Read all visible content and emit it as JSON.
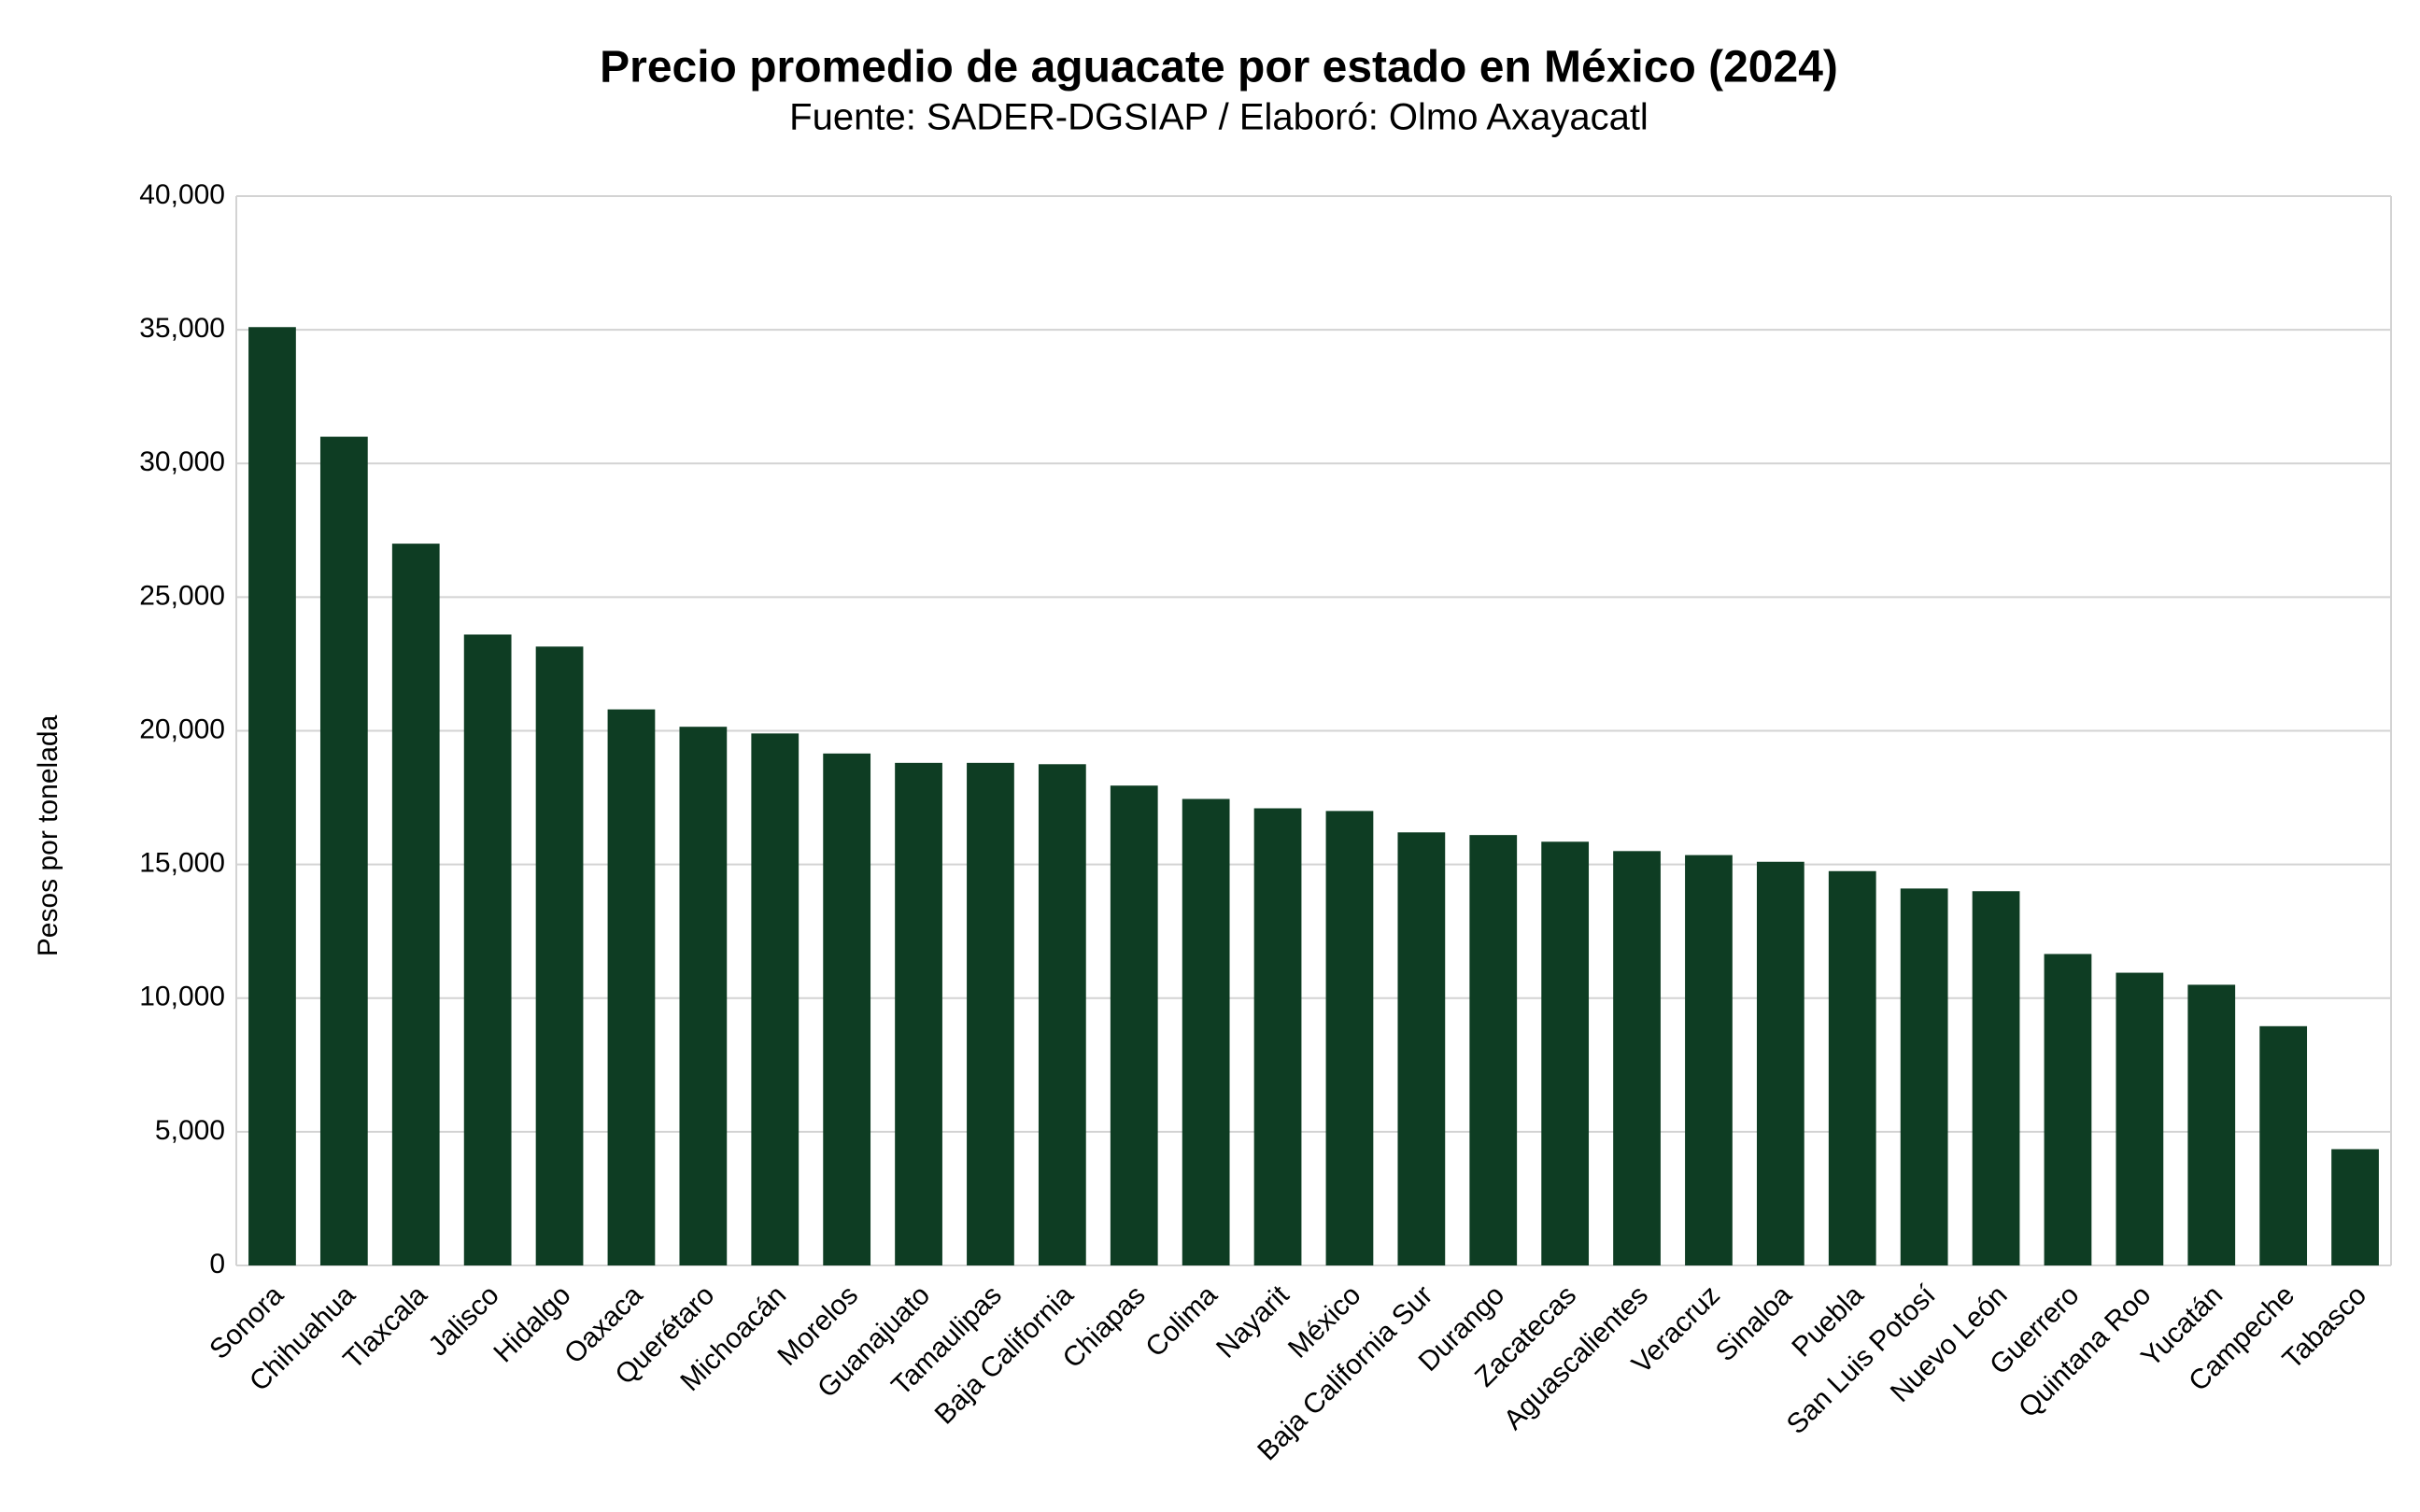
{
  "chart_data": {
    "type": "bar",
    "title": "Precio promedio de aguacate por estado en México (2024)",
    "subtitle": "Fuente: SADER-DGSIAP / Elaboró: Olmo Axayacatl",
    "y_label": "Pesos por tonelada",
    "categories": [
      "Sonora",
      "Chihuahua",
      "Tlaxcala",
      "Jalisco",
      "Hidalgo",
      "Oaxaca",
      "Querétaro",
      "Michoacán",
      "Morelos",
      "Guanajuato",
      "Tamaulipas",
      "Baja California",
      "Chiapas",
      "Colima",
      "Nayarit",
      "México",
      "Baja California Sur",
      "Durango",
      "Zacatecas",
      "Aguascalientes",
      "Veracruz",
      "Sinaloa",
      "Puebla",
      "San Luis Potosí",
      "Nuevo León",
      "Guerrero",
      "Quintana Roo",
      "Yucatán",
      "Campeche",
      "Tabasco"
    ],
    "values": [
      35100,
      31000,
      27000,
      23600,
      23150,
      20800,
      20150,
      19900,
      19150,
      18800,
      18800,
      18750,
      17950,
      17450,
      17100,
      17000,
      16200,
      16100,
      15850,
      15500,
      15350,
      15100,
      14750,
      14100,
      14000,
      11650,
      10950,
      10500,
      8950,
      4350
    ],
    "color": "#0e3d23",
    "ylim": [
      0,
      40000
    ],
    "yticks": [
      0,
      {
        "value": 5000,
        "label": "5,000"
      },
      {
        "value": 10000,
        "label": "10,000"
      },
      {
        "value": 15000,
        "label": "15,000"
      },
      {
        "value": 20000,
        "label": "20,000"
      },
      {
        "value": 25000,
        "label": "25,000"
      },
      {
        "value": 30000,
        "label": "30,000"
      },
      {
        "value": 35000,
        "label": "35,000"
      },
      {
        "value": 40000,
        "label": "40,000"
      }
    ],
    "grid": true
  }
}
